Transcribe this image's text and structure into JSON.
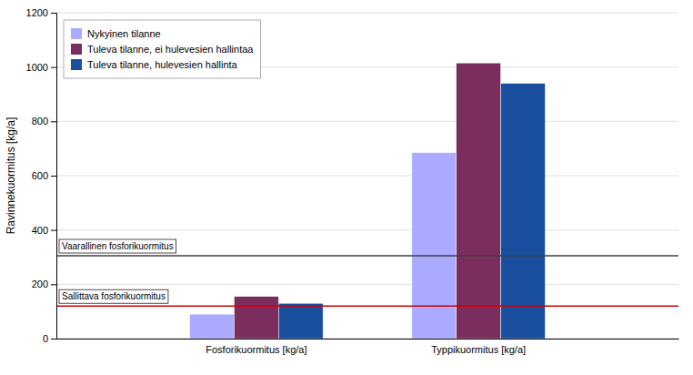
{
  "chart_data": {
    "type": "bar",
    "categories": [
      "Fosforikuormitus [kg/a]",
      "Typpikuormitus [kg/a]"
    ],
    "series": [
      {
        "name": "Nykyinen tilanne",
        "color": "#aaaaff",
        "values": [
          90,
          685
        ]
      },
      {
        "name": "Tuleva tilanne, ei hulevesien hallintaa",
        "color": "#7b2d5e",
        "values": [
          155,
          1015
        ]
      },
      {
        "name": "Tuleva tilanne, hulevesien hallinta",
        "color": "#1a4fa0",
        "values": [
          130,
          940
        ]
      }
    ],
    "ylabel": "Ravinnekuormitus [kg/a]",
    "ylim": [
      0,
      1200
    ],
    "yticks": [
      0,
      200,
      400,
      600,
      800,
      1000,
      1200
    ],
    "annotations": [
      {
        "text": "Vaarallinen fosforikuormitus",
        "y": 305,
        "color": "#404040"
      },
      {
        "text": "Sallittava fosforikuormitus",
        "y": 120,
        "color": "#cc0000"
      }
    ],
    "grid": true,
    "legend": "upper left"
  }
}
